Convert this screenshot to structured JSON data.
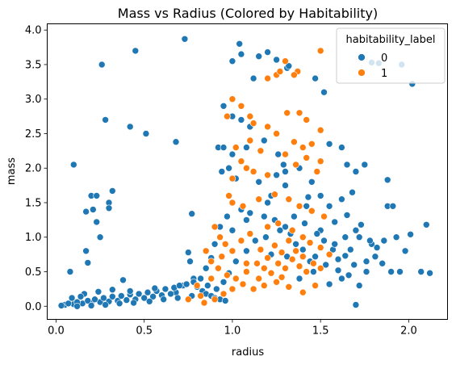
{
  "chart_data": {
    "type": "scatter",
    "title": "Mass vs Radius (Colored by Habitability)",
    "xlabel": "radius",
    "ylabel": "mass",
    "xlim": [
      -0.05,
      2.22
    ],
    "ylim": [
      -0.19,
      4.09
    ],
    "xticks": [
      "0.0",
      "0.5",
      "1.0",
      "1.5",
      "2.0"
    ],
    "yticks": [
      "0.0",
      "0.5",
      "1.0",
      "1.5",
      "2.0",
      "2.5",
      "3.0",
      "3.5",
      "4.0"
    ],
    "grid": false,
    "legend": {
      "title": "habitability_label",
      "position": "top-right"
    },
    "series": [
      {
        "name": "0",
        "color": "#1f77b4",
        "points": [
          [
            0.26,
            3.5
          ],
          [
            0.45,
            3.7
          ],
          [
            0.73,
            3.87
          ],
          [
            0.28,
            2.7
          ],
          [
            0.42,
            2.6
          ],
          [
            0.51,
            2.5
          ],
          [
            0.68,
            2.38
          ],
          [
            0.1,
            2.05
          ],
          [
            0.2,
            1.6
          ],
          [
            0.23,
            1.6
          ],
          [
            0.32,
            1.67
          ],
          [
            0.3,
            1.5
          ],
          [
            0.3,
            1.42
          ],
          [
            0.21,
            1.4
          ],
          [
            0.17,
            1.37
          ],
          [
            0.23,
            1.22
          ],
          [
            0.25,
            1.0
          ],
          [
            0.17,
            0.8
          ],
          [
            0.18,
            0.63
          ],
          [
            0.08,
            0.5
          ],
          [
            0.38,
            0.38
          ],
          [
            0.77,
            1.34
          ],
          [
            0.75,
            0.78
          ],
          [
            0.76,
            0.65
          ],
          [
            1.04,
            3.8
          ],
          [
            1.12,
            3.3
          ],
          [
            1.05,
            3.65
          ],
          [
            1.0,
            3.55
          ],
          [
            1.15,
            3.62
          ],
          [
            1.2,
            3.68
          ],
          [
            1.25,
            3.57
          ],
          [
            1.31,
            3.45
          ],
          [
            1.32,
            3.48
          ],
          [
            0.95,
            2.9
          ],
          [
            1.0,
            2.75
          ],
          [
            1.05,
            2.7
          ],
          [
            1.1,
            2.6
          ],
          [
            0.92,
            2.3
          ],
          [
            0.95,
            2.3
          ],
          [
            1.0,
            2.2
          ],
          [
            1.08,
            2.3
          ],
          [
            1.18,
            2.4
          ],
          [
            1.26,
            2.2
          ],
          [
            1.29,
            2.05
          ],
          [
            0.94,
            1.95
          ],
          [
            0.98,
            2.0
          ],
          [
            1.02,
            1.85
          ],
          [
            1.15,
            1.8
          ],
          [
            1.3,
            1.75
          ],
          [
            1.47,
            3.3
          ],
          [
            1.52,
            3.1
          ],
          [
            1.55,
            2.35
          ],
          [
            1.62,
            2.3
          ],
          [
            1.65,
            2.05
          ],
          [
            1.7,
            1.95
          ],
          [
            1.75,
            2.05
          ],
          [
            1.79,
            3.53
          ],
          [
            1.83,
            3.52
          ],
          [
            1.96,
            3.5
          ],
          [
            2.02,
            3.22
          ],
          [
            1.55,
            1.45
          ],
          [
            1.62,
            1.55
          ],
          [
            1.65,
            1.32
          ],
          [
            1.72,
            1.0
          ],
          [
            1.76,
            0.65
          ],
          [
            1.79,
            0.9
          ],
          [
            1.82,
            0.85
          ],
          [
            1.86,
            0.95
          ],
          [
            1.88,
            1.45
          ],
          [
            1.88,
            1.83
          ],
          [
            1.91,
            1.45
          ],
          [
            1.93,
            1.0
          ],
          [
            1.95,
            0.5
          ],
          [
            1.98,
            0.8
          ],
          [
            2.01,
            1.04
          ],
          [
            2.1,
            1.18
          ],
          [
            2.12,
            0.48
          ],
          [
            2.07,
            0.5
          ],
          [
            1.9,
            0.5
          ],
          [
            1.7,
            0.02
          ],
          [
            1.6,
            0.52
          ],
          [
            1.53,
            0.6
          ],
          [
            1.66,
            0.45
          ],
          [
            1.69,
            0.6
          ],
          [
            1.64,
            0.73
          ],
          [
            1.57,
            0.82
          ],
          [
            1.47,
            0.72
          ],
          [
            1.44,
            0.65
          ],
          [
            1.4,
            0.82
          ],
          [
            1.36,
            0.9
          ],
          [
            1.3,
            1.15
          ],
          [
            1.24,
            1.25
          ],
          [
            1.18,
            1.3
          ],
          [
            1.1,
            1.35
          ],
          [
            1.05,
            1.4
          ],
          [
            1.0,
            1.1
          ],
          [
            1.2,
            1.5
          ],
          [
            1.22,
            1.6
          ],
          [
            1.35,
            1.3
          ],
          [
            1.42,
            1.45
          ],
          [
            1.5,
            1.1
          ],
          [
            1.43,
            1.58
          ],
          [
            0.9,
            0.9
          ],
          [
            0.88,
            0.7
          ],
          [
            0.85,
            0.55
          ],
          [
            0.82,
            0.4
          ],
          [
            0.86,
            0.3
          ],
          [
            0.91,
            0.25
          ],
          [
            0.95,
            0.35
          ],
          [
            0.98,
            0.48
          ],
          [
            1.02,
            0.65
          ],
          [
            1.08,
            0.8
          ],
          [
            1.13,
            0.95
          ],
          [
            1.22,
            0.75
          ],
          [
            1.31,
            0.72
          ],
          [
            1.38,
            0.4
          ],
          [
            1.46,
            0.5
          ],
          [
            1.55,
            0.32
          ],
          [
            1.62,
            0.4
          ],
          [
            1.72,
            0.3
          ],
          [
            1.76,
            0.5
          ],
          [
            1.73,
            1.18
          ],
          [
            1.68,
            1.65
          ],
          [
            1.58,
            1.22
          ],
          [
            1.5,
            1.6
          ],
          [
            1.45,
            1.8
          ],
          [
            1.38,
            2.0
          ],
          [
            1.3,
            1.95
          ],
          [
            1.25,
            1.9
          ],
          [
            1.15,
            1.55
          ],
          [
            1.08,
            1.25
          ],
          [
            0.97,
            1.3
          ],
          [
            0.93,
            1.15
          ],
          [
            0.78,
            0.4
          ],
          [
            0.72,
            0.3
          ],
          [
            0.68,
            0.2
          ],
          [
            0.65,
            0.18
          ],
          [
            0.6,
            0.16
          ],
          [
            0.55,
            0.14
          ],
          [
            0.5,
            0.12
          ],
          [
            0.45,
            0.1
          ],
          [
            0.4,
            0.09
          ],
          [
            0.35,
            0.08
          ],
          [
            0.3,
            0.07
          ],
          [
            0.25,
            0.06
          ],
          [
            0.2,
            0.05
          ],
          [
            0.15,
            0.04
          ],
          [
            0.1,
            0.03
          ],
          [
            0.05,
            0.02
          ],
          [
            0.03,
            0.01
          ],
          [
            0.07,
            0.04
          ],
          [
            0.12,
            0.06
          ],
          [
            0.18,
            0.08
          ],
          [
            0.22,
            0.1
          ],
          [
            0.27,
            0.12
          ],
          [
            0.32,
            0.14
          ],
          [
            0.37,
            0.15
          ],
          [
            0.42,
            0.17
          ],
          [
            0.47,
            0.18
          ],
          [
            0.52,
            0.2
          ],
          [
            0.57,
            0.22
          ],
          [
            0.62,
            0.25
          ],
          [
            0.67,
            0.27
          ],
          [
            0.7,
            0.3
          ],
          [
            0.74,
            0.32
          ],
          [
            0.78,
            0.35
          ],
          [
            0.8,
            0.28
          ],
          [
            0.83,
            0.22
          ],
          [
            0.85,
            0.18
          ],
          [
            0.88,
            0.15
          ],
          [
            0.9,
            0.12
          ],
          [
            0.93,
            0.1
          ],
          [
            0.96,
            0.08
          ],
          [
            0.12,
            0.0
          ],
          [
            0.2,
            0.01
          ],
          [
            0.28,
            0.02
          ],
          [
            0.36,
            0.04
          ],
          [
            0.44,
            0.05
          ],
          [
            0.53,
            0.07
          ],
          [
            0.61,
            0.1
          ],
          [
            0.69,
            0.12
          ],
          [
            0.77,
            0.15
          ],
          [
            0.32,
            0.24
          ],
          [
            0.24,
            0.21
          ],
          [
            0.16,
            0.18
          ],
          [
            0.09,
            0.12
          ],
          [
            0.14,
            0.14
          ],
          [
            0.42,
            0.22
          ],
          [
            0.56,
            0.26
          ],
          [
            1.19,
            1.0
          ],
          [
            1.27,
            1.1
          ],
          [
            1.33,
            1.05
          ],
          [
            1.41,
            1.2
          ],
          [
            1.48,
            1.05
          ],
          [
            1.52,
            0.95
          ],
          [
            1.58,
            0.9
          ],
          [
            1.64,
            1.0
          ],
          [
            1.7,
            1.1
          ],
          [
            1.78,
            0.95
          ],
          [
            1.81,
            0.72
          ],
          [
            1.85,
            0.62
          ],
          [
            1.67,
            0.82
          ],
          [
            1.6,
            0.68
          ]
        ]
      },
      {
        "name": "1",
        "color": "#ff7f0e",
        "points": [
          [
            1.5,
            3.7
          ],
          [
            1.3,
            3.55
          ],
          [
            1.25,
            3.35
          ],
          [
            1.37,
            3.4
          ],
          [
            1.35,
            3.35
          ],
          [
            1.27,
            3.4
          ],
          [
            1.2,
            3.3
          ],
          [
            1.0,
            3.0
          ],
          [
            1.05,
            2.9
          ],
          [
            0.97,
            2.75
          ],
          [
            1.1,
            2.75
          ],
          [
            1.12,
            2.65
          ],
          [
            1.2,
            2.6
          ],
          [
            1.31,
            2.8
          ],
          [
            1.38,
            2.8
          ],
          [
            1.42,
            2.7
          ],
          [
            1.5,
            2.55
          ],
          [
            1.25,
            2.5
          ],
          [
            1.35,
            2.38
          ],
          [
            1.4,
            2.3
          ],
          [
            1.45,
            2.35
          ],
          [
            1.42,
            2.15
          ],
          [
            1.5,
            2.1
          ],
          [
            1.48,
            1.95
          ],
          [
            1.2,
            1.9
          ],
          [
            1.12,
            1.95
          ],
          [
            1.05,
            2.1
          ],
          [
            1.08,
            2.0
          ],
          [
            1.0,
            1.85
          ],
          [
            1.02,
            2.3
          ],
          [
            1.1,
            2.4
          ],
          [
            1.16,
            2.25
          ],
          [
            1.3,
            2.2
          ],
          [
            1.36,
            2.05
          ],
          [
            0.98,
            1.6
          ],
          [
            1.0,
            1.5
          ],
          [
            1.06,
            1.45
          ],
          [
            1.15,
            1.55
          ],
          [
            1.24,
            1.62
          ],
          [
            1.32,
            1.55
          ],
          [
            1.38,
            1.45
          ],
          [
            1.45,
            1.38
          ],
          [
            1.52,
            1.3
          ],
          [
            0.9,
            1.15
          ],
          [
            0.93,
            1.0
          ],
          [
            0.96,
            0.9
          ],
          [
            1.0,
            0.8
          ],
          [
            1.05,
            0.95
          ],
          [
            1.1,
            1.05
          ],
          [
            1.2,
            1.15
          ],
          [
            1.26,
            1.2
          ],
          [
            1.34,
            1.1
          ],
          [
            1.4,
            1.0
          ],
          [
            1.44,
            0.92
          ],
          [
            1.5,
            0.85
          ],
          [
            1.55,
            0.75
          ],
          [
            0.85,
            0.8
          ],
          [
            0.88,
            0.65
          ],
          [
            0.92,
            0.55
          ],
          [
            0.97,
            0.45
          ],
          [
            1.02,
            0.4
          ],
          [
            1.08,
            0.5
          ],
          [
            1.14,
            0.62
          ],
          [
            1.18,
            0.55
          ],
          [
            1.22,
            0.48
          ],
          [
            1.26,
            0.62
          ],
          [
            1.3,
            0.55
          ],
          [
            1.34,
            0.68
          ],
          [
            1.38,
            0.58
          ],
          [
            1.42,
            0.5
          ],
          [
            1.46,
            0.62
          ],
          [
            1.5,
            0.55
          ],
          [
            1.47,
            0.3
          ],
          [
            1.4,
            0.2
          ],
          [
            1.32,
            0.28
          ],
          [
            1.25,
            0.35
          ],
          [
            1.18,
            0.3
          ],
          [
            1.12,
            0.25
          ],
          [
            1.06,
            0.32
          ],
          [
            1.0,
            0.25
          ],
          [
            0.95,
            0.18
          ],
          [
            0.9,
            0.1
          ],
          [
            0.8,
            0.3
          ],
          [
            0.75,
            0.1
          ],
          [
            0.84,
            0.05
          ],
          [
            1.28,
            0.78
          ],
          [
            1.2,
            0.7
          ],
          [
            1.16,
            0.82
          ],
          [
            1.24,
            0.88
          ],
          [
            1.32,
            0.95
          ],
          [
            1.36,
            0.8
          ],
          [
            1.4,
            0.72
          ],
          [
            1.28,
            0.42
          ],
          [
            1.15,
            0.4
          ],
          [
            1.08,
            0.62
          ],
          [
            0.94,
            0.72
          ],
          [
            0.88,
            0.4
          ],
          [
            0.82,
            0.15
          ]
        ]
      }
    ]
  }
}
